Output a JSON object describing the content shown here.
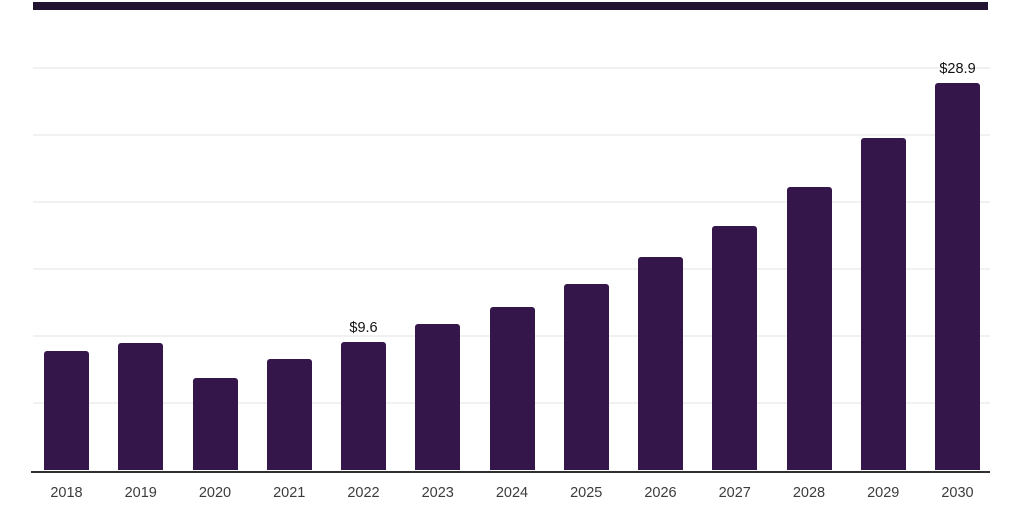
{
  "chart_data": {
    "type": "bar",
    "title": "",
    "xlabel": "",
    "ylabel": "",
    "categories": [
      "2018",
      "2019",
      "2020",
      "2021",
      "2022",
      "2023",
      "2024",
      "2025",
      "2026",
      "2027",
      "2028",
      "2029",
      "2030"
    ],
    "values": [
      8.9,
      9.5,
      6.9,
      8.3,
      9.6,
      10.9,
      12.2,
      13.9,
      15.9,
      18.2,
      21.1,
      24.8,
      28.9
    ],
    "data_labels": {
      "2022": "$9.6",
      "2030": "$28.9"
    },
    "ylim": [
      0,
      35
    ],
    "gridline_step": 5,
    "grid": "on",
    "legend": "none",
    "colors": {
      "bar": "#34164a",
      "top_strip": "#221430",
      "gridline": "#f1f1f1",
      "axis": "#303030",
      "tick_label": "#3c3c3c",
      "value_label": "#111111",
      "background": "#ffffff"
    }
  }
}
